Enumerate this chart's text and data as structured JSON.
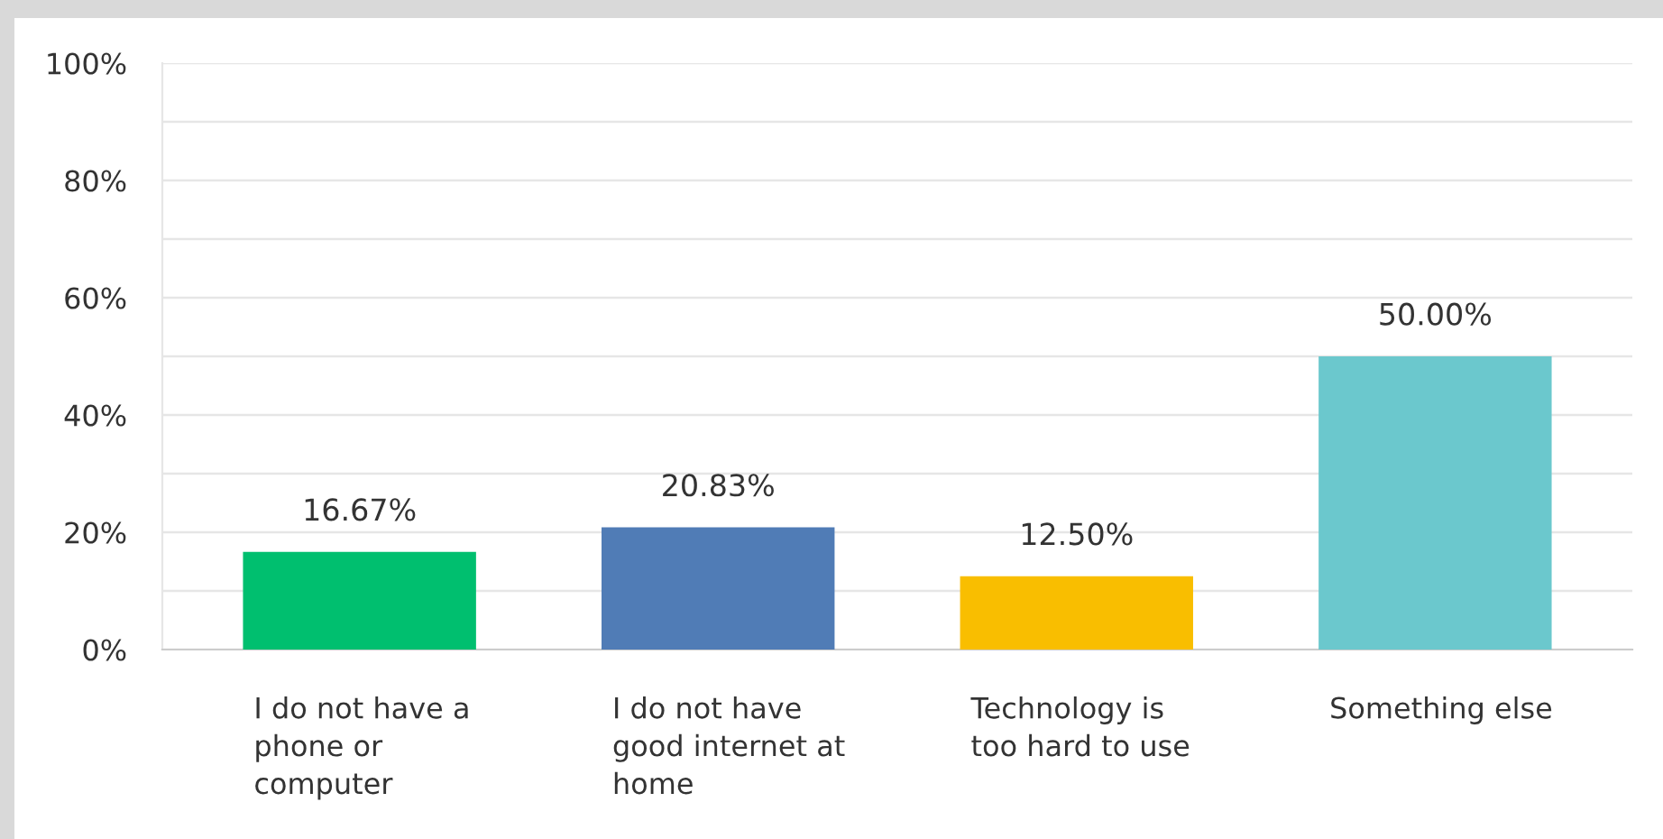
{
  "chart_data": {
    "type": "bar",
    "categories": [
      "I do not have a\nphone or\ncomputer",
      "I do not have\ngood internet at\nhome",
      "Technology is\ntoo hard to use",
      "Something else"
    ],
    "values": [
      16.67,
      20.83,
      12.5,
      50.0
    ],
    "value_labels": [
      "16.67%",
      "20.83%",
      "12.50%",
      "50.00%"
    ],
    "colors": [
      "#00bf6f",
      "#507cb6",
      "#f9be00",
      "#6bc8cd"
    ],
    "ylim": [
      0,
      100
    ],
    "yticks": [
      {
        "value": 0,
        "label": "0%"
      },
      {
        "value": 10,
        "label": null
      },
      {
        "value": 20,
        "label": "20%"
      },
      {
        "value": 30,
        "label": null
      },
      {
        "value": 40,
        "label": "40%"
      },
      {
        "value": 50,
        "label": null
      },
      {
        "value": 60,
        "label": "60%"
      },
      {
        "value": 70,
        "label": null
      },
      {
        "value": 80,
        "label": "80%"
      },
      {
        "value": 90,
        "label": null
      },
      {
        "value": 100,
        "label": "100%"
      }
    ],
    "grid": "y",
    "legend": false
  }
}
